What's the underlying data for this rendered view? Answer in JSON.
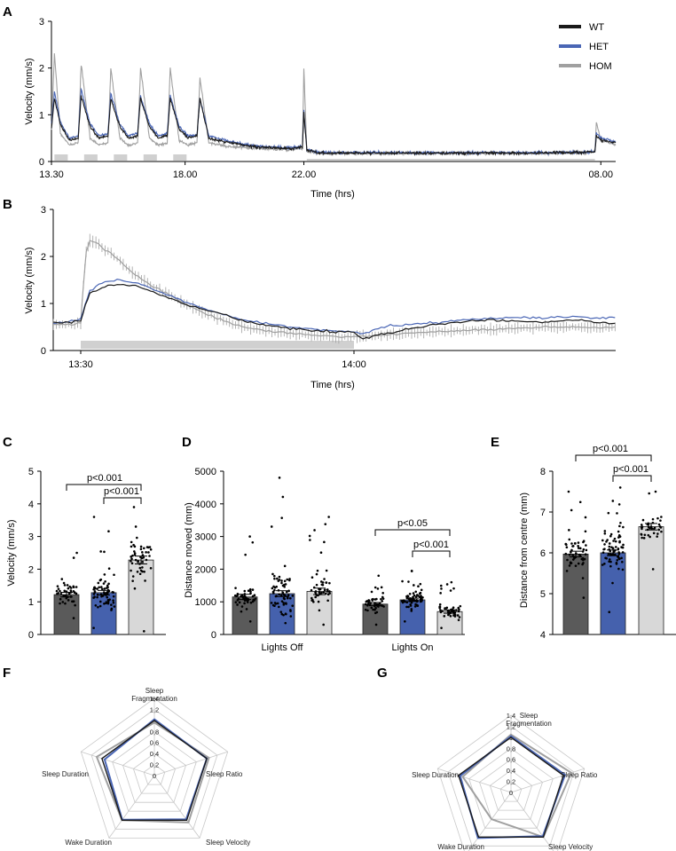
{
  "colors": {
    "WT": "#1a1a1a",
    "HET": "#4a66b5",
    "HOM": "#a0a0a0",
    "WT_bar": "#5a5a5a",
    "HET_bar": "#4561ad",
    "HOM_bar": "#d8d8d8",
    "radar_grid": "#c8c8c8"
  },
  "panels": {
    "A": {
      "label": "A"
    },
    "B": {
      "label": "B"
    },
    "C": {
      "label": "C",
      "p1": "p<0.001",
      "p2": "p<0.001"
    },
    "D": {
      "label": "D",
      "p1": "p<0.05",
      "p2": "p<0.001"
    },
    "E": {
      "label": "E",
      "p1": "p<0.001",
      "p2": "p<0.001"
    },
    "F": {
      "label": "F"
    },
    "G": {
      "label": "G"
    }
  },
  "chart_data": [
    {
      "panel": "A",
      "type": "line",
      "xlabel": "Time (hrs)",
      "ylabel": "Velocity (mm/s)",
      "ylim": [
        0,
        3
      ],
      "yticks": [
        "0",
        "1",
        "2",
        "3"
      ],
      "xticks": [
        "13.30",
        "18.00",
        "22.00",
        "08.00"
      ],
      "legend": [
        "WT",
        "HET",
        "HOM"
      ],
      "legend_position": "top-right",
      "series": [
        {
          "name": "WT",
          "x": [
            0,
            0.1,
            0.3,
            0.6,
            0.9,
            1.0,
            1.3,
            1.6,
            1.9,
            2.0,
            2.3,
            2.6,
            2.9,
            3.0,
            3.3,
            3.6,
            3.9,
            4.0,
            4.3,
            4.6,
            4.9,
            5.0,
            5.3,
            6.0,
            7.0,
            8.0,
            8.45,
            8.5,
            8.6,
            9.0,
            12.0,
            16.0,
            18.0,
            18.3,
            18.35,
            18.5,
            19.0
          ],
          "y": [
            0.7,
            1.35,
            0.8,
            0.45,
            0.5,
            1.4,
            0.75,
            0.5,
            0.55,
            1.35,
            0.75,
            0.5,
            0.55,
            1.35,
            0.75,
            0.5,
            0.55,
            1.35,
            0.7,
            0.5,
            0.55,
            1.35,
            0.5,
            0.4,
            0.3,
            0.28,
            0.3,
            1.05,
            0.25,
            0.18,
            0.18,
            0.18,
            0.2,
            0.2,
            0.55,
            0.45,
            0.4
          ]
        },
        {
          "name": "HET",
          "x": [
            0,
            0.1,
            0.3,
            0.6,
            0.9,
            1.0,
            1.3,
            1.6,
            1.9,
            2.0,
            2.3,
            2.6,
            2.9,
            3.0,
            3.3,
            3.6,
            3.9,
            4.0,
            4.3,
            4.6,
            4.9,
            5.0,
            5.3,
            6.0,
            7.0,
            8.0,
            8.45,
            8.5,
            8.6,
            9.0,
            12.0,
            16.0,
            18.0,
            18.3,
            18.35,
            18.5,
            19.0
          ],
          "y": [
            0.8,
            1.5,
            0.85,
            0.5,
            0.55,
            1.55,
            0.8,
            0.55,
            0.6,
            1.45,
            0.8,
            0.55,
            0.6,
            1.4,
            0.8,
            0.55,
            0.6,
            1.4,
            0.75,
            0.55,
            0.55,
            1.35,
            0.55,
            0.42,
            0.32,
            0.3,
            0.32,
            1.1,
            0.26,
            0.19,
            0.19,
            0.19,
            0.2,
            0.22,
            0.6,
            0.5,
            0.42
          ]
        },
        {
          "name": "HOM",
          "x": [
            0,
            0.1,
            0.3,
            0.6,
            0.9,
            1.0,
            1.3,
            1.6,
            1.9,
            2.0,
            2.3,
            2.6,
            2.9,
            3.0,
            3.3,
            3.6,
            3.9,
            4.0,
            4.3,
            4.6,
            4.9,
            5.0,
            5.3,
            6.0,
            7.0,
            8.0,
            8.45,
            8.5,
            8.6,
            9.0,
            12.0,
            16.0,
            18.0,
            18.3,
            18.35,
            18.5,
            19.0
          ],
          "y": [
            0.7,
            2.3,
            0.6,
            0.35,
            0.4,
            2.1,
            0.5,
            0.35,
            0.4,
            2.0,
            0.5,
            0.35,
            0.4,
            2.0,
            0.5,
            0.35,
            0.4,
            2.0,
            0.45,
            0.35,
            0.4,
            1.8,
            0.4,
            0.32,
            0.28,
            0.25,
            0.28,
            2.0,
            0.22,
            0.17,
            0.17,
            0.17,
            0.18,
            0.2,
            0.85,
            0.45,
            0.35
          ]
        }
      ]
    },
    {
      "panel": "B",
      "type": "line",
      "xlabel": "Time (hrs)",
      "ylabel": "Velocity (mm/s)",
      "ylim": [
        0,
        3
      ],
      "yticks": [
        "0",
        "1",
        "2",
        "3"
      ],
      "xticks": [
        "13:30",
        "14:00"
      ],
      "series": [
        {
          "name": "WT",
          "x": [
            -3,
            -2,
            -1,
            0,
            0.5,
            1,
            2,
            3,
            4,
            6,
            8,
            10,
            12,
            14,
            16,
            18,
            20,
            22,
            24,
            26,
            28,
            30,
            31,
            33,
            36,
            39,
            42,
            45,
            48,
            51,
            54,
            57,
            59
          ],
          "y": [
            0.6,
            0.6,
            0.6,
            0.65,
            0.95,
            1.2,
            1.3,
            1.38,
            1.4,
            1.38,
            1.25,
            1.1,
            0.95,
            0.85,
            0.75,
            0.62,
            0.55,
            0.5,
            0.45,
            0.42,
            0.4,
            0.38,
            0.25,
            0.35,
            0.45,
            0.55,
            0.62,
            0.65,
            0.62,
            0.6,
            0.65,
            0.6,
            0.55
          ]
        },
        {
          "name": "HET",
          "x": [
            -3,
            -2,
            -1,
            0,
            0.5,
            1,
            2,
            3,
            4,
            6,
            8,
            10,
            12,
            14,
            16,
            18,
            20,
            22,
            24,
            26,
            28,
            30,
            31,
            33,
            36,
            39,
            42,
            45,
            48,
            51,
            54,
            57,
            59
          ],
          "y": [
            0.58,
            0.6,
            0.62,
            0.66,
            1.0,
            1.25,
            1.4,
            1.48,
            1.5,
            1.45,
            1.3,
            1.15,
            1.0,
            0.85,
            0.75,
            0.65,
            0.58,
            0.52,
            0.48,
            0.45,
            0.42,
            0.4,
            0.35,
            0.5,
            0.55,
            0.6,
            0.65,
            0.68,
            0.7,
            0.7,
            0.72,
            0.68,
            0.7
          ]
        },
        {
          "name": "HOM",
          "x": [
            -3,
            -2,
            -1,
            0,
            0.3,
            0.6,
            1,
            2,
            3,
            4,
            6,
            8,
            10,
            12,
            14,
            16,
            18,
            20,
            22,
            24,
            26,
            28,
            30,
            31,
            33,
            36,
            39,
            42,
            45,
            48,
            51,
            54,
            57,
            59
          ],
          "y": [
            0.55,
            0.55,
            0.55,
            0.6,
            1.4,
            2.1,
            2.35,
            2.25,
            2.1,
            1.95,
            1.6,
            1.35,
            1.15,
            0.95,
            0.75,
            0.6,
            0.5,
            0.42,
            0.38,
            0.35,
            0.32,
            0.3,
            0.28,
            0.3,
            0.32,
            0.38,
            0.4,
            0.42,
            0.45,
            0.48,
            0.5,
            0.5,
            0.48,
            0.5
          ]
        }
      ]
    },
    {
      "panel": "C",
      "type": "bar",
      "ylabel": "Velocity (mm/s)",
      "ylim": [
        0,
        5
      ],
      "yticks": [
        "0",
        "1",
        "2",
        "3",
        "4",
        "5"
      ],
      "series": [
        {
          "name": "WT",
          "mean": 1.22,
          "sem": 0.07,
          "n": 45,
          "range": [
            0.5,
            2.5
          ]
        },
        {
          "name": "HET",
          "mean": 1.28,
          "sem": 0.07,
          "n": 70,
          "range": [
            0.2,
            3.6
          ]
        },
        {
          "name": "HOM",
          "mean": 2.28,
          "sem": 0.12,
          "n": 50,
          "range": [
            0.1,
            3.9
          ]
        }
      ]
    },
    {
      "panel": "D",
      "type": "bar",
      "ylabel": "Distance moved (mm)",
      "ylim": [
        0,
        5000
      ],
      "yticks": [
        "0",
        "1000",
        "2000",
        "3000",
        "4000",
        "5000"
      ],
      "categories": [
        "Lights Off",
        "Lights On"
      ],
      "series": [
        {
          "name": "WT",
          "values": [
            1150,
            930
          ],
          "sem": [
            80,
            50
          ],
          "n": 45
        },
        {
          "name": "HET",
          "values": [
            1250,
            1060
          ],
          "sem": [
            90,
            50
          ],
          "n": 70
        },
        {
          "name": "HOM",
          "values": [
            1320,
            700
          ],
          "sem": [
            100,
            50
          ],
          "n": 50
        }
      ]
    },
    {
      "panel": "E",
      "type": "bar",
      "ylabel": "Distance from centre (mm)",
      "ylim": [
        4,
        8
      ],
      "yticks": [
        "4",
        "5",
        "6",
        "7",
        "8"
      ],
      "series": [
        {
          "name": "WT",
          "mean": 5.97,
          "sem": 0.07,
          "n": 55,
          "range": [
            4.9,
            7.5
          ]
        },
        {
          "name": "HET",
          "mean": 6.0,
          "sem": 0.07,
          "n": 75,
          "range": [
            4.55,
            7.6
          ]
        },
        {
          "name": "HOM",
          "mean": 6.64,
          "sem": 0.08,
          "n": 38,
          "range": [
            5.6,
            7.5
          ]
        }
      ]
    },
    {
      "panel": "F",
      "type": "radar",
      "axes": [
        "Sleep Fragmentation",
        "Sleep Ratio",
        "Sleep Velocity",
        "Wake Duration",
        "Sleep  Duration"
      ],
      "rticks": [
        "0",
        "0,2",
        "0,4",
        "0,6",
        "0,8",
        "1",
        "1,2",
        "1,4"
      ],
      "rlim": [
        0,
        1.4
      ],
      "series": [
        {
          "name": "WT",
          "values": [
            1,
            1,
            1,
            1,
            1
          ]
        },
        {
          "name": "HET",
          "values": [
            1.02,
            1.0,
            0.98,
            0.99,
            0.95
          ]
        },
        {
          "name": "HOM",
          "values": [
            0.96,
            1.04,
            1.05,
            1.0,
            1.1
          ]
        }
      ]
    },
    {
      "panel": "G",
      "type": "radar",
      "axes": [
        "Sleep Fragmentation",
        "Sleep Ratio",
        "Sleep Velocity",
        "Wake Duration",
        "Sleep Duration"
      ],
      "rticks": [
        "0",
        "0,2",
        "0,4",
        "0,6",
        "0,8",
        "1",
        "1,2",
        "1,4"
      ],
      "rlim": [
        0,
        1.4
      ],
      "series": [
        {
          "name": "WT",
          "values": [
            1,
            1,
            1,
            1,
            1
          ]
        },
        {
          "name": "HET",
          "values": [
            1.02,
            1.03,
            0.98,
            1.02,
            0.97
          ]
        },
        {
          "name": "HOM",
          "values": [
            1.05,
            1.15,
            1.0,
            0.6,
            0.92
          ]
        }
      ]
    }
  ]
}
